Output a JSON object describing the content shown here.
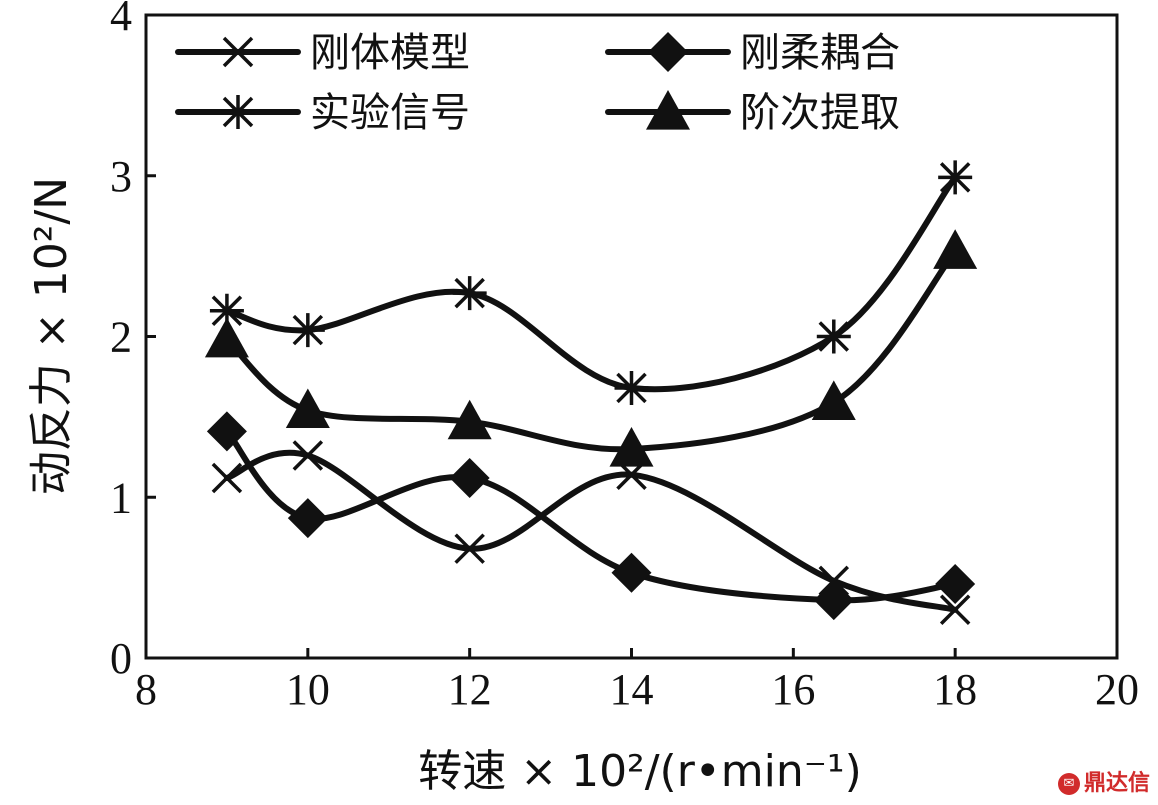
{
  "chart_data": {
    "type": "line",
    "title": "",
    "xlabel": "转速 × 10²/(r•min⁻¹)",
    "ylabel": "动反力 × 10²/N",
    "xlim": [
      8,
      20
    ],
    "ylim": [
      0,
      4
    ],
    "x_ticks": [
      "8",
      "10",
      "12",
      "14",
      "16",
      "18",
      "20"
    ],
    "y_ticks": [
      "0",
      "1",
      "2",
      "3",
      "4"
    ],
    "grid": false,
    "legend_position": "top",
    "colors": {
      "line": "#111111",
      "background": "#ffffff"
    },
    "series": [
      {
        "name": "刚体模型",
        "marker": "x-cross",
        "x": [
          9,
          10,
          12,
          14,
          16.5,
          18
        ],
        "y": [
          1.12,
          1.26,
          0.68,
          1.14,
          0.48,
          0.3
        ]
      },
      {
        "name": "刚柔耦合",
        "marker": "diamond",
        "x": [
          9,
          10,
          12,
          14,
          16.5,
          18
        ],
        "y": [
          1.41,
          0.87,
          1.12,
          0.53,
          0.36,
          0.46
        ]
      },
      {
        "name": "实验信号",
        "marker": "asterisk",
        "x": [
          9,
          10,
          12,
          14,
          16.5,
          18
        ],
        "y": [
          2.16,
          2.04,
          2.27,
          1.68,
          2.0,
          2.99
        ]
      },
      {
        "name": "阶次提取",
        "marker": "triangle",
        "x": [
          9,
          10,
          12,
          14,
          16.5,
          18
        ],
        "y": [
          1.98,
          1.54,
          1.47,
          1.3,
          1.59,
          2.53
        ]
      }
    ]
  },
  "watermark": {
    "text": "鼎达信",
    "logo_icon": "dingdaxin-logo-icon"
  }
}
